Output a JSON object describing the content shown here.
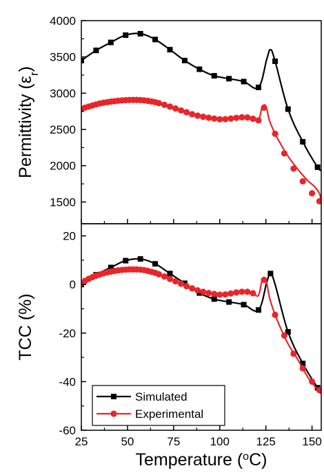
{
  "chart_data": [
    {
      "type": "line",
      "ylabel": "Permittivity (εr)",
      "xlim": [
        25,
        155
      ],
      "ylim": [
        1200,
        4000
      ],
      "yticks": [
        1500,
        2000,
        2500,
        3000,
        3500,
        4000
      ],
      "xticks": [
        25,
        50,
        75,
        100,
        125,
        150
      ],
      "series": [
        {
          "name": "Simulated",
          "color": "#000000",
          "marker": "square",
          "x": [
            25,
            33,
            41,
            49,
            57,
            65,
            73,
            81,
            89,
            97,
            105,
            113,
            121,
            125.5,
            127.5,
            130,
            137,
            145,
            153,
            155
          ],
          "y": [
            3450,
            3590,
            3700,
            3800,
            3820,
            3740,
            3600,
            3450,
            3330,
            3240,
            3200,
            3160,
            3080,
            3470,
            3600,
            3440,
            2780,
            2330,
            1980,
            1940
          ],
          "markers_x": [
            25,
            33,
            41,
            49,
            57,
            65,
            73,
            81,
            89,
            97,
            105,
            113,
            121,
            130,
            137,
            145,
            153
          ],
          "markers_y": [
            3450,
            3590,
            3700,
            3800,
            3820,
            3740,
            3600,
            3450,
            3330,
            3240,
            3200,
            3160,
            3080,
            3440,
            2780,
            2330,
            1980
          ]
        },
        {
          "name": "Experimental",
          "color": "#e8262a",
          "marker": "circle",
          "x": [
            25,
            27,
            29,
            31,
            33,
            35,
            37,
            39,
            41,
            43,
            45,
            47,
            49,
            51,
            53,
            55,
            57,
            59,
            61,
            63,
            65,
            67,
            70,
            73,
            76,
            79,
            82,
            85,
            88,
            91,
            94,
            97,
            100,
            103,
            106,
            109,
            112,
            115,
            118,
            121,
            123,
            125,
            127,
            130,
            133,
            136,
            139,
            142,
            145,
            148,
            151,
            154,
            155
          ],
          "y": [
            2780,
            2800,
            2815,
            2830,
            2845,
            2858,
            2868,
            2876,
            2884,
            2890,
            2896,
            2900,
            2904,
            2906,
            2907,
            2907,
            2905,
            2900,
            2894,
            2886,
            2876,
            2862,
            2840,
            2815,
            2790,
            2762,
            2738,
            2710,
            2690,
            2675,
            2662,
            2650,
            2640,
            2642,
            2650,
            2660,
            2668,
            2665,
            2648,
            2625,
            2805,
            2820,
            2620,
            2440,
            2300,
            2170,
            2060,
            1960,
            1870,
            1785,
            1720,
            1620,
            1490
          ],
          "markers_x": [
            25,
            27,
            29,
            31,
            33,
            35,
            37,
            39,
            41,
            43,
            45,
            47,
            49,
            51,
            53,
            55,
            57,
            59,
            61,
            63,
            65,
            67,
            70,
            73,
            76,
            79,
            82,
            85,
            88,
            91,
            94,
            97,
            100,
            103,
            106,
            109,
            112,
            115,
            118,
            121,
            124,
            130,
            135,
            140,
            145,
            150,
            154
          ],
          "markers_y": [
            2780,
            2800,
            2815,
            2830,
            2845,
            2858,
            2868,
            2876,
            2884,
            2890,
            2896,
            2900,
            2904,
            2906,
            2907,
            2907,
            2905,
            2900,
            2894,
            2886,
            2876,
            2862,
            2840,
            2815,
            2790,
            2762,
            2738,
            2710,
            2690,
            2675,
            2662,
            2650,
            2640,
            2642,
            2650,
            2660,
            2668,
            2665,
            2648,
            2625,
            2800,
            2440,
            2170,
            1960,
            1785,
            1620,
            1510
          ]
        }
      ]
    },
    {
      "type": "line",
      "xlabel": "Temperature (°C)",
      "ylabel": "TCC (%)",
      "xlim": [
        25,
        155
      ],
      "ylim": [
        -60,
        25
      ],
      "yticks": [
        -60,
        -40,
        -20,
        0,
        20
      ],
      "xticks": [
        25,
        50,
        75,
        100,
        125,
        150
      ],
      "legend": {
        "position": "bottom-left",
        "entries": [
          "Simulated",
          "Experimental"
        ]
      },
      "series": [
        {
          "name": "Simulated",
          "color": "#000000",
          "marker": "square",
          "x": [
            25,
            33,
            41,
            49,
            57,
            65,
            73,
            81,
            89,
            97,
            105,
            113,
            121,
            125.5,
            127.5,
            130,
            137,
            145,
            153,
            155
          ],
          "y": [
            0,
            4,
            7,
            9.8,
            10.5,
            8.5,
            4.5,
            0.5,
            -3.5,
            -6,
            -7.2,
            -8.3,
            -10.5,
            1,
            4.5,
            0,
            -19.5,
            -32.5,
            -42.5,
            -44
          ],
          "markers_x": [
            25,
            33,
            41,
            49,
            57,
            65,
            73,
            81,
            89,
            97,
            105,
            113,
            121,
            127.5,
            137,
            145,
            153
          ],
          "markers_y": [
            0,
            4,
            7,
            9.8,
            10.5,
            8.5,
            4.5,
            0.5,
            -3.5,
            -6,
            -7.2,
            -8.3,
            -10.5,
            4.5,
            -19.5,
            -32.5,
            -42.5
          ]
        },
        {
          "name": "Experimental",
          "color": "#e8262a",
          "marker": "circle",
          "x": [
            25,
            27,
            29,
            31,
            33,
            35,
            37,
            39,
            41,
            43,
            45,
            47,
            49,
            51,
            53,
            55,
            57,
            59,
            61,
            63,
            65,
            67,
            70,
            73,
            76,
            79,
            82,
            85,
            88,
            91,
            94,
            97,
            100,
            103,
            106,
            109,
            112,
            115,
            118,
            121,
            123,
            125,
            127,
            130,
            133,
            136,
            139,
            142,
            145,
            148,
            151,
            155
          ],
          "y": [
            0.5,
            1.5,
            2.3,
            3,
            3.6,
            4.1,
            4.6,
            5,
            5.3,
            5.6,
            5.8,
            6,
            6.1,
            6.2,
            6.2,
            6.2,
            6.1,
            5.9,
            5.6,
            5.2,
            4.8,
            4.2,
            3.3,
            2.3,
            1.3,
            0.3,
            -0.7,
            -1.6,
            -2.4,
            -3,
            -3.5,
            -3.9,
            -4.2,
            -4.1,
            -3.7,
            -3.3,
            -3,
            -3,
            -3.6,
            -4.5,
            1.8,
            2,
            -5.5,
            -12.5,
            -18,
            -23,
            -27,
            -30.5,
            -34.5,
            -38.5,
            -41.5,
            -45
          ],
          "markers_x": [
            25,
            27,
            29,
            31,
            33,
            35,
            37,
            39,
            41,
            43,
            45,
            47,
            49,
            51,
            53,
            55,
            57,
            59,
            61,
            63,
            65,
            67,
            70,
            73,
            76,
            79,
            82,
            85,
            88,
            91,
            94,
            97,
            100,
            103,
            106,
            109,
            112,
            115,
            118,
            124,
            130,
            135,
            140,
            145,
            150,
            154
          ],
          "markers_y": [
            0.5,
            1.5,
            2.3,
            3,
            3.6,
            4.1,
            4.6,
            5,
            5.3,
            5.6,
            5.8,
            6,
            6.1,
            6.2,
            6.2,
            6.2,
            6.1,
            5.9,
            5.6,
            5.2,
            4.8,
            4.2,
            3.3,
            2.3,
            1.3,
            0.3,
            -0.7,
            -1.6,
            -2.4,
            -3,
            -3.5,
            -3.9,
            -4.2,
            -4.1,
            -3.7,
            -3.3,
            -3,
            -3,
            -3.6,
            1.9,
            -12.5,
            -21,
            -28.5,
            -34.5,
            -40,
            -43.5
          ]
        }
      ]
    }
  ]
}
